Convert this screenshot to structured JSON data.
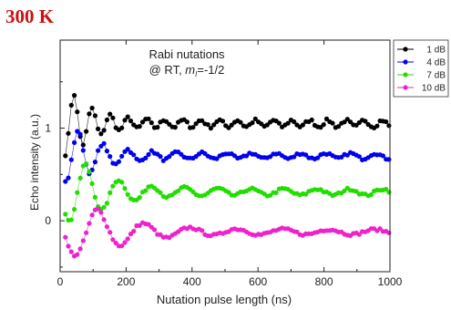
{
  "corner_label": "300 K",
  "chart_data": {
    "type": "scatter",
    "title_line1": "Rabi nutations",
    "title_line2_prefix": "@ RT, ",
    "title_m": "m",
    "title_sub": "I",
    "title_line2_suffix": "=-1/2",
    "xlabel": "Nutation pulse length (ns)",
    "ylabel": "Echo intensity (a.u.)",
    "xlim": [
      0,
      1000
    ],
    "ylim": [
      -0.55,
      1.95
    ],
    "x_ticks": [
      0,
      200,
      400,
      600,
      800,
      1000
    ],
    "y_ticks": [
      0,
      1
    ],
    "legend_position": "top-right",
    "series": [
      {
        "name": "1 dB",
        "color": "#000000",
        "offset": 1.05,
        "amp": 0.32,
        "period": 55,
        "decay": 70,
        "phase_t": 42,
        "noise": 0.018
      },
      {
        "name": "4 dB",
        "color": "#0000ee",
        "offset": 0.7,
        "amp": 0.27,
        "period": 75,
        "decay": 85,
        "phase_t": 55,
        "noise": 0.015
      },
      {
        "name": "7 dB",
        "color": "#22dd00",
        "offset": 0.31,
        "amp": 0.3,
        "period": 100,
        "decay": 100,
        "phase_t": 78,
        "noise": 0.015
      },
      {
        "name": "10 dB",
        "color": "#ee22cc",
        "offset": -0.12,
        "amp": 0.24,
        "period": 140,
        "decay": 120,
        "phase_t": 115,
        "noise": 0.015
      }
    ]
  }
}
